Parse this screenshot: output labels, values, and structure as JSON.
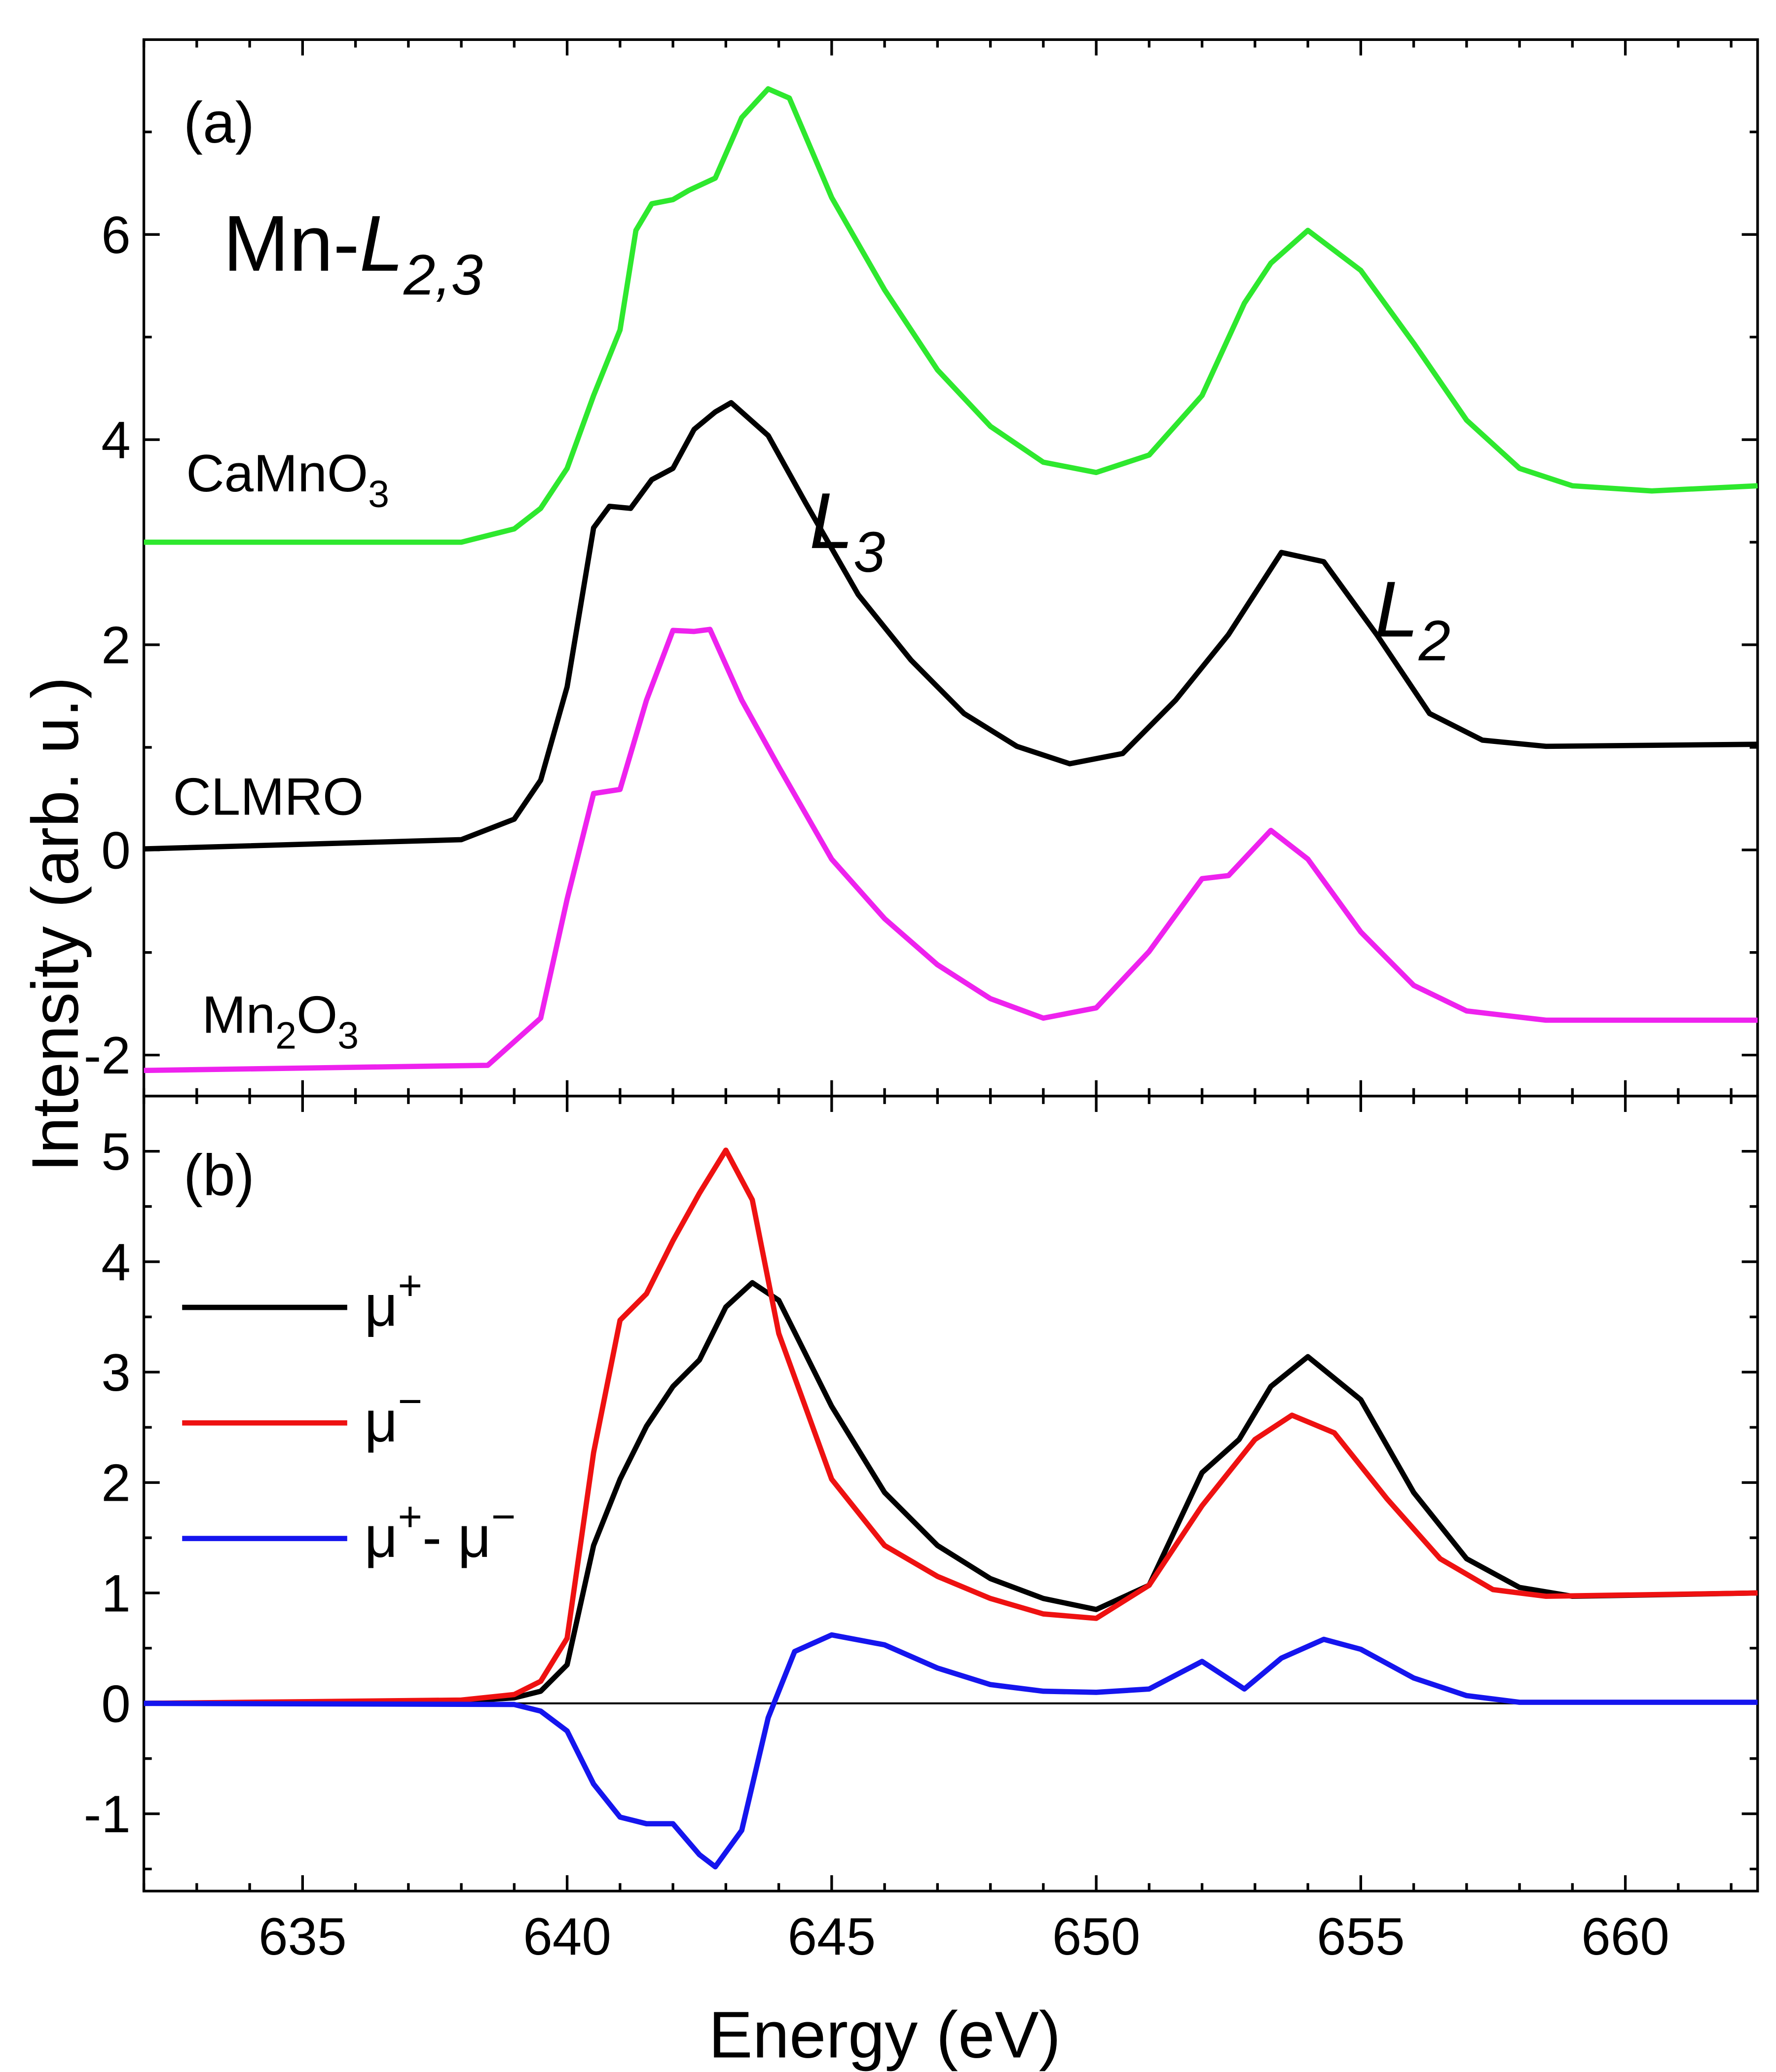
{
  "chart_data": [
    {
      "type": "line",
      "ylabel": "Intensity (arb. u.)",
      "xlim": [
        632,
        662.5
      ],
      "xticks": [
        635,
        640,
        645,
        650,
        655,
        660
      ],
      "xticks_minor": [
        632,
        633,
        634,
        636,
        637,
        638,
        639,
        641,
        642,
        643,
        644,
        646,
        647,
        648,
        649,
        651,
        652,
        653,
        654,
        656,
        657,
        658,
        659,
        661,
        662
      ],
      "xtick_labels": false,
      "ylim": [
        -2.4,
        7.9
      ],
      "yticks": [
        -2,
        0,
        2,
        4,
        6
      ],
      "yticks_minor": [
        -1,
        1,
        3,
        5,
        7
      ],
      "annotations": [
        {
          "text": "(a)"
        },
        {
          "text": "Mn-"
        },
        {
          "text": "L2,3",
          "italic": true
        },
        {
          "text": "L3",
          "italic": true
        },
        {
          "text": "L2",
          "italic": true
        }
      ],
      "series": [
        {
          "name": "CaMnO3",
          "color": "#2ee82e",
          "x": [
            632,
            638,
            639,
            639.5,
            640,
            640.5,
            641,
            641.3,
            641.6,
            642,
            642.3,
            642.8,
            643.3,
            643.8,
            644.2,
            645,
            646,
            647,
            648,
            649,
            650,
            651,
            652,
            652.8,
            653.3,
            654,
            655,
            656,
            657,
            658,
            659,
            660.5,
            662.5
          ],
          "values": [
            3.0,
            3.0,
            3.13,
            3.33,
            3.72,
            4.43,
            5.07,
            6.04,
            6.3,
            6.34,
            6.43,
            6.55,
            7.14,
            7.42,
            7.33,
            6.36,
            5.46,
            4.68,
            4.13,
            3.78,
            3.68,
            3.85,
            4.43,
            5.33,
            5.72,
            6.04,
            5.65,
            4.94,
            4.19,
            3.72,
            3.55,
            3.5,
            3.55
          ]
        },
        {
          "name": "CLMRO",
          "color": "#000000",
          "x": [
            632,
            638,
            639,
            639.5,
            640,
            640.5,
            640.8,
            641.2,
            641.6,
            642,
            642.4,
            642.8,
            643.1,
            643.8,
            644.5,
            645.5,
            646.5,
            647.5,
            648.5,
            649.5,
            650.5,
            651.5,
            652.5,
            653.5,
            654.3,
            655.3,
            656.3,
            657.3,
            658.5,
            662.5
          ],
          "values": [
            0.01,
            0.1,
            0.3,
            0.68,
            1.59,
            3.14,
            3.35,
            3.33,
            3.61,
            3.72,
            4.1,
            4.27,
            4.36,
            4.04,
            3.39,
            2.49,
            1.85,
            1.33,
            1.01,
            0.84,
            0.94,
            1.46,
            2.1,
            2.9,
            2.81,
            2.1,
            1.33,
            1.07,
            1.01,
            1.03
          ]
        },
        {
          "name": "Mn2O3",
          "color": "#ee22ee",
          "x": [
            632,
            638.5,
            639.5,
            640,
            640.5,
            641,
            641.5,
            642,
            642.4,
            642.7,
            643.3,
            644,
            645,
            646,
            647,
            648,
            649,
            650,
            651,
            652,
            652.5,
            653.3,
            654,
            655,
            656,
            657,
            658.5,
            662.5
          ],
          "values": [
            -2.15,
            -2.1,
            -1.64,
            -0.48,
            0.55,
            0.59,
            1.46,
            2.14,
            2.13,
            2.15,
            1.46,
            0.81,
            -0.09,
            -0.67,
            -1.12,
            -1.45,
            -1.64,
            -1.54,
            -0.99,
            -0.28,
            -0.25,
            0.19,
            -0.09,
            -0.8,
            -1.32,
            -1.57,
            -1.66,
            -1.66
          ]
        }
      ]
    },
    {
      "type": "line",
      "xlabel": "Energy (eV)",
      "xlim": [
        632,
        662.5
      ],
      "xticks": [
        635,
        640,
        645,
        650,
        655,
        660
      ],
      "xticks_minor": [
        632,
        633,
        634,
        636,
        637,
        638,
        639,
        641,
        642,
        643,
        644,
        646,
        647,
        648,
        649,
        651,
        652,
        653,
        654,
        656,
        657,
        658,
        659,
        661,
        662
      ],
      "ylim": [
        -1.7,
        5.5
      ],
      "yticks": [
        -1,
        0,
        1,
        2,
        3,
        4,
        5
      ],
      "yticks_minor": [
        -1.5,
        -0.5,
        0.5,
        1.5,
        2.5,
        3.5,
        4.5
      ],
      "zero_line": true,
      "legend": "upper left",
      "annotations": [
        {
          "text": "(b)"
        }
      ],
      "series": [
        {
          "name": "μ+",
          "color": "#000000",
          "x": [
            632,
            638,
            639,
            639.5,
            640,
            640.5,
            641,
            641.5,
            642,
            642.5,
            643,
            643.5,
            644,
            645,
            646,
            647,
            648,
            649,
            650,
            651,
            652,
            652.7,
            653.3,
            654,
            655,
            656,
            657,
            658,
            659,
            662.5
          ],
          "values": [
            0,
            0.02,
            0.05,
            0.11,
            0.35,
            1.43,
            2.03,
            2.51,
            2.87,
            3.11,
            3.59,
            3.81,
            3.65,
            2.69,
            1.91,
            1.43,
            1.13,
            0.95,
            0.85,
            1.07,
            2.09,
            2.39,
            2.87,
            3.14,
            2.75,
            1.91,
            1.31,
            1.05,
            0.97,
            1.0
          ]
        },
        {
          "name": "μ−",
          "color": "#ee1111",
          "x": [
            632,
            638,
            639,
            639.5,
            640,
            640.5,
            641,
            641.5,
            642,
            642.5,
            643,
            643.5,
            644,
            645,
            646,
            647,
            648,
            649,
            650,
            651,
            652,
            653,
            653.7,
            654.5,
            655.5,
            656.5,
            657.5,
            658.5,
            662.5
          ],
          "values": [
            0,
            0.03,
            0.08,
            0.2,
            0.59,
            2.27,
            3.47,
            3.71,
            4.19,
            4.62,
            5.01,
            4.56,
            3.35,
            2.03,
            1.43,
            1.15,
            0.95,
            0.81,
            0.77,
            1.07,
            1.79,
            2.39,
            2.61,
            2.45,
            1.85,
            1.31,
            1.03,
            0.97,
            1.0
          ]
        },
        {
          "name": "μ+- μ−",
          "color": "#1515ee",
          "x": [
            632,
            639,
            639.5,
            640,
            640.5,
            641,
            641.5,
            642,
            642.5,
            642.8,
            643.3,
            643.8,
            644.3,
            645,
            646,
            647,
            648,
            649,
            650,
            651,
            652,
            652.8,
            653.5,
            654.3,
            655,
            656,
            657,
            658,
            662.5
          ],
          "values": [
            0,
            -0.01,
            -0.07,
            -0.25,
            -0.73,
            -1.03,
            -1.09,
            -1.09,
            -1.37,
            -1.48,
            -1.15,
            -0.13,
            0.47,
            0.62,
            0.53,
            0.32,
            0.17,
            0.11,
            0.1,
            0.13,
            0.38,
            0.13,
            0.41,
            0.58,
            0.49,
            0.23,
            0.07,
            0.01,
            0.01
          ]
        }
      ]
    }
  ]
}
